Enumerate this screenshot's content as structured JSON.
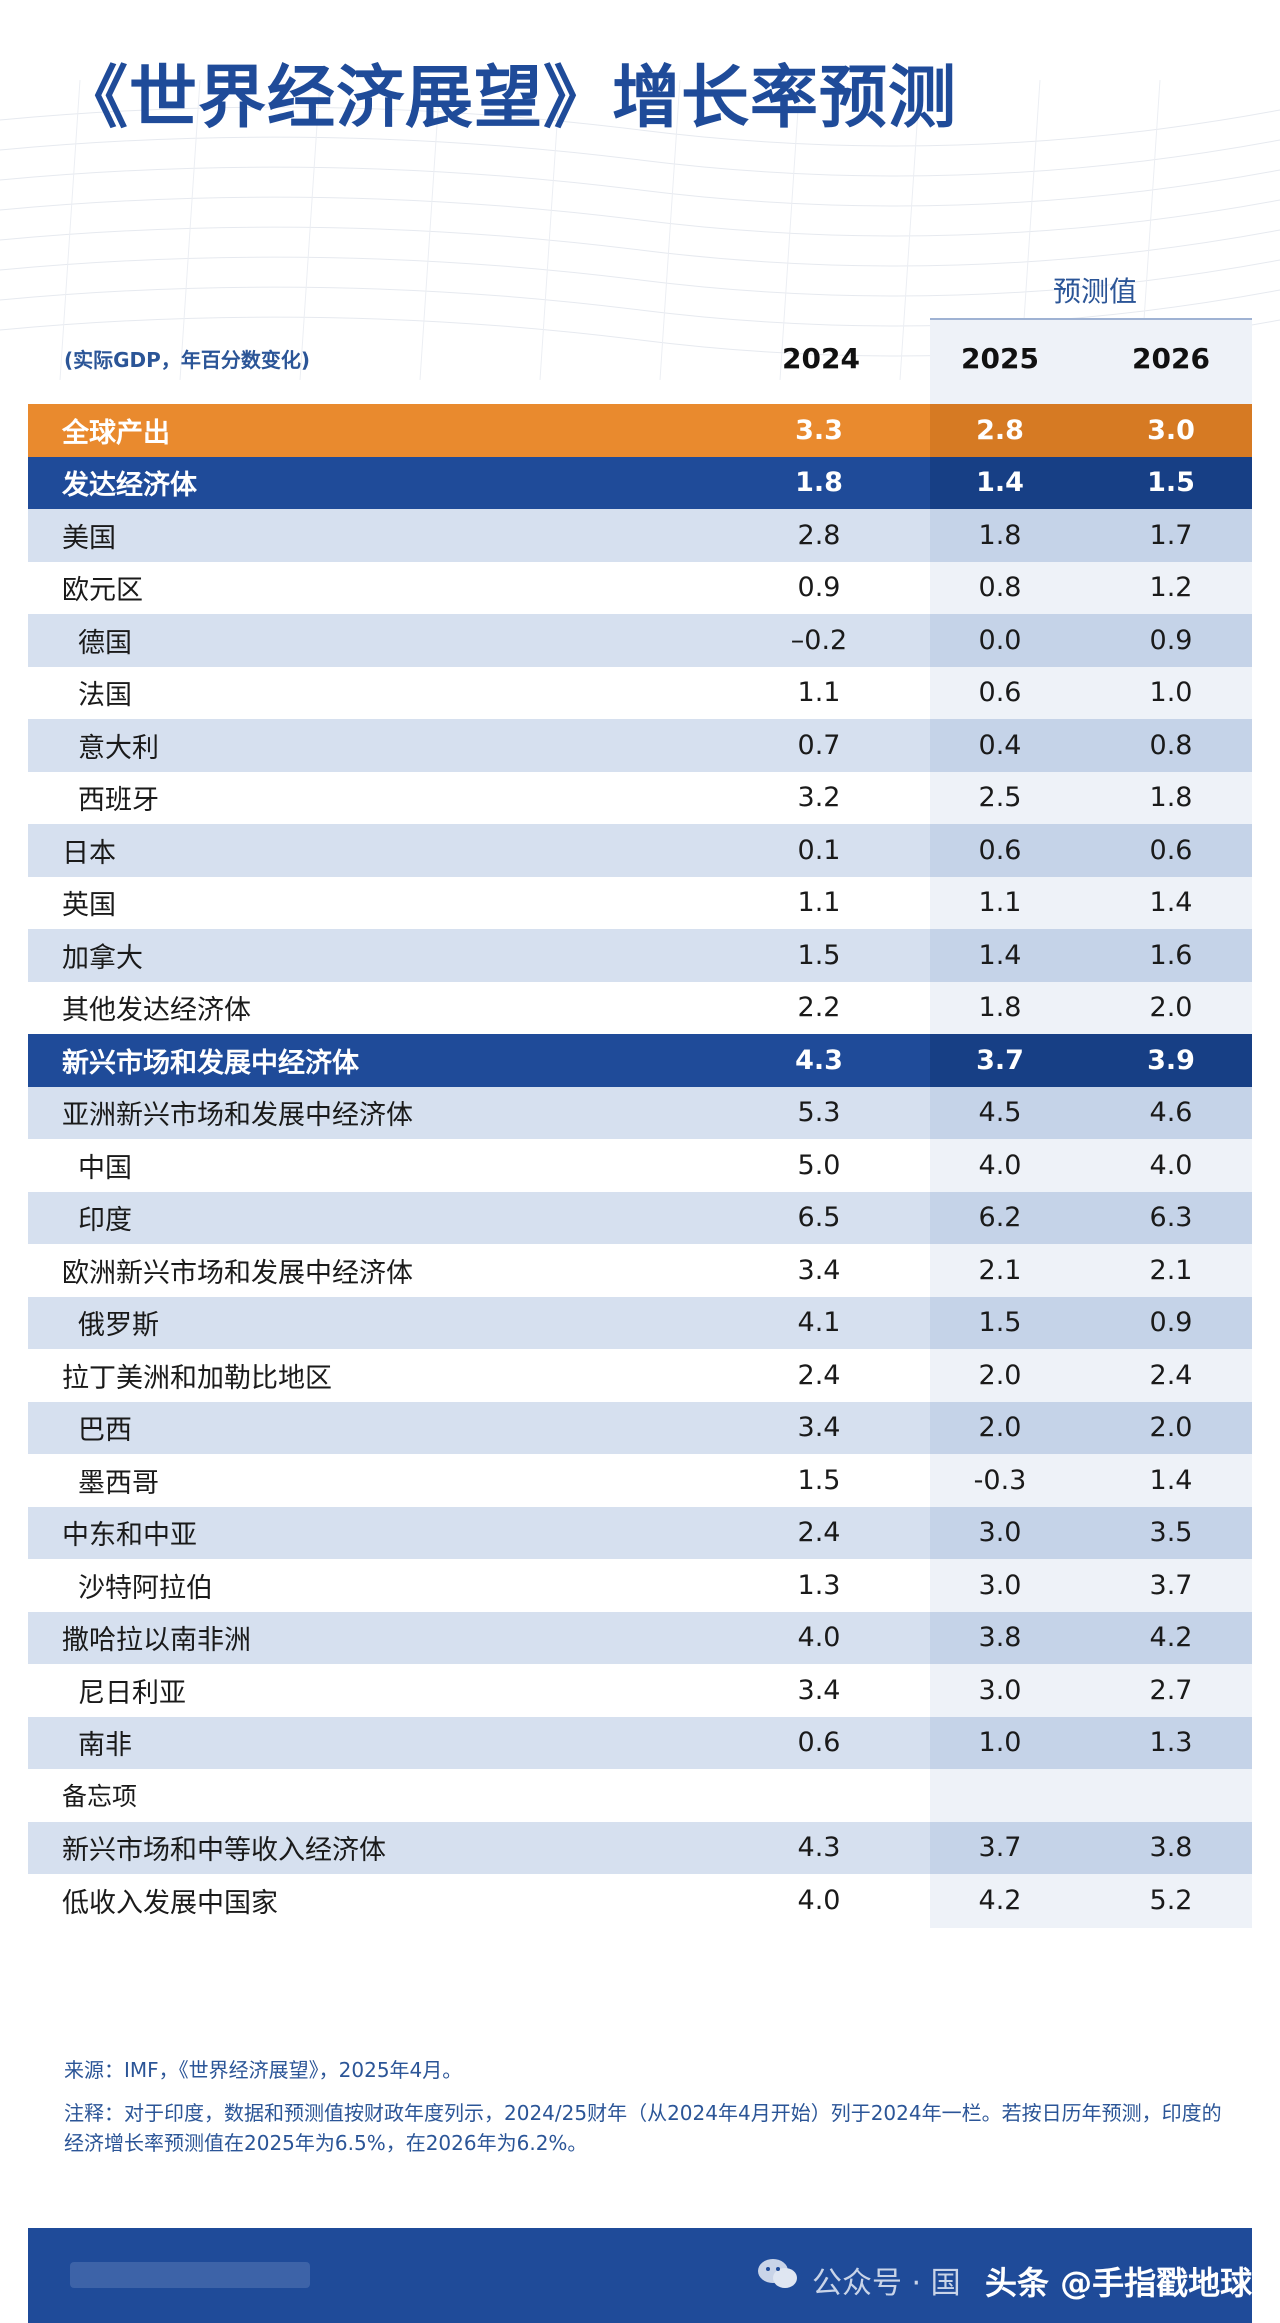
{
  "title": "《世界经济展望》增长率预测",
  "forecast_label": "预测值",
  "unit_label": "(实际GDP，年百分数变化)",
  "years": [
    "2024",
    "2025",
    "2026"
  ],
  "rows": [
    {
      "label": "全球产出",
      "v": [
        "3.3",
        "2.8",
        "3.0"
      ]
    },
    {
      "label": "发达经济体",
      "v": [
        "1.8",
        "1.4",
        "1.5"
      ]
    },
    {
      "label": "美国",
      "v": [
        "2.8",
        "1.8",
        "1.7"
      ]
    },
    {
      "label": "欧元区",
      "v": [
        "0.9",
        "0.8",
        "1.2"
      ]
    },
    {
      "label": "德国",
      "v": [
        "–0.2",
        "0.0",
        "0.9"
      ]
    },
    {
      "label": "法国",
      "v": [
        "1.1",
        "0.6",
        "1.0"
      ]
    },
    {
      "label": "意大利",
      "v": [
        "0.7",
        "0.4",
        "0.8"
      ]
    },
    {
      "label": "西班牙",
      "v": [
        "3.2",
        "2.5",
        "1.8"
      ]
    },
    {
      "label": "日本",
      "v": [
        "0.1",
        "0.6",
        "0.6"
      ]
    },
    {
      "label": "英国",
      "v": [
        "1.1",
        "1.1",
        "1.4"
      ]
    },
    {
      "label": "加拿大",
      "v": [
        "1.5",
        "1.4",
        "1.6"
      ]
    },
    {
      "label": "其他发达经济体",
      "v": [
        "2.2",
        "1.8",
        "2.0"
      ]
    },
    {
      "label": "新兴市场和发展中经济体",
      "v": [
        "4.3",
        "3.7",
        "3.9"
      ]
    },
    {
      "label": "亚洲新兴市场和发展中经济体",
      "v": [
        "5.3",
        "4.5",
        "4.6"
      ]
    },
    {
      "label": "中国",
      "v": [
        "5.0",
        "4.0",
        "4.0"
      ]
    },
    {
      "label": "印度",
      "v": [
        "6.5",
        "6.2",
        "6.3"
      ]
    },
    {
      "label": "欧洲新兴市场和发展中经济体",
      "v": [
        "3.4",
        "2.1",
        "2.1"
      ]
    },
    {
      "label": "俄罗斯",
      "v": [
        "4.1",
        "1.5",
        "0.9"
      ]
    },
    {
      "label": "拉丁美洲和加勒比地区",
      "v": [
        "2.4",
        "2.0",
        "2.4"
      ]
    },
    {
      "label": "巴西",
      "v": [
        "3.4",
        "2.0",
        "2.0"
      ]
    },
    {
      "label": "墨西哥",
      "v": [
        "1.5",
        "-0.3",
        "1.4"
      ]
    },
    {
      "label": "中东和中亚",
      "v": [
        "2.4",
        "3.0",
        "3.5"
      ]
    },
    {
      "label": "沙特阿拉伯",
      "v": [
        "1.3",
        "3.0",
        "3.7"
      ]
    },
    {
      "label": "撒哈拉以南非洲",
      "v": [
        "4.0",
        "3.8",
        "4.2"
      ]
    },
    {
      "label": "尼日利亚",
      "v": [
        "3.4",
        "3.0",
        "2.7"
      ]
    },
    {
      "label": "南非",
      "v": [
        "0.6",
        "1.0",
        "1.3"
      ]
    },
    {
      "label": "备忘项",
      "v": [
        "",
        "",
        ""
      ]
    },
    {
      "label": "新兴市场和中等收入经济体",
      "v": [
        "4.3",
        "3.7",
        "3.8"
      ]
    },
    {
      "label": "低收入发展中国家",
      "v": [
        "4.0",
        "4.2",
        "5.2"
      ]
    }
  ],
  "source": "来源：IMF，《世界经济展望》，2025年4月。",
  "note": "注释：对于印度，数据和预测值按财政年度列示，2024/25财年（从2024年4月开始）列于2024年一栏。若按日历年预测，印度的经济增长率预测值在2025年为6.5%，在2026年为6.2%。",
  "footer": {
    "account": "公众号 · 国",
    "brand": "头条 @手指戳地球"
  },
  "colors": {
    "navy": "#1f4b99",
    "orange": "#e98a2e",
    "light_band": "#d6e0ef"
  }
}
